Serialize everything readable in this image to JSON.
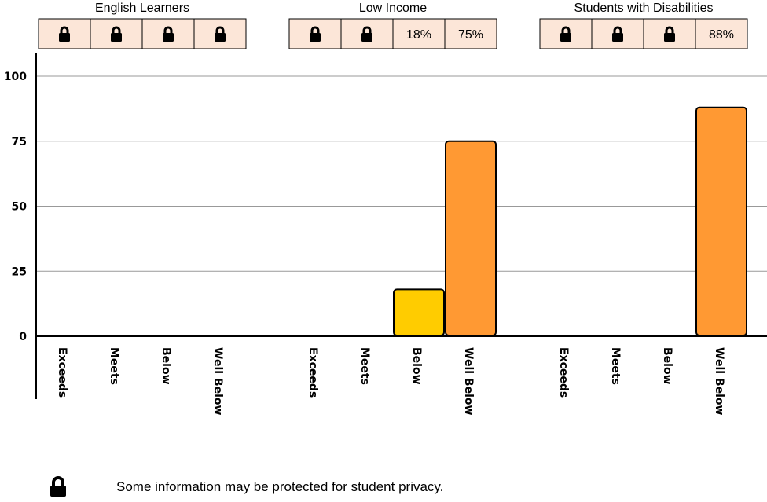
{
  "chart_data": {
    "type": "bar",
    "ylim": [
      0,
      100
    ],
    "yticks": [
      0,
      25,
      50,
      75,
      100
    ],
    "grid": true,
    "colors": {
      "Exceeds": "#4f9bd9",
      "Meets": "#7cc47f",
      "Below": "#ffcc00",
      "Well Below": "#ff9933",
      "cell_bg": "#fce6d8",
      "grid": "#999999"
    },
    "groups": [
      {
        "name": "English Learners",
        "categories": [
          "Exceeds",
          "Meets",
          "Below",
          "Well Below"
        ],
        "cells": [
          "lock",
          "lock",
          "lock",
          "lock"
        ],
        "values": [
          null,
          null,
          null,
          null
        ]
      },
      {
        "name": "Low Income",
        "categories": [
          "Exceeds",
          "Meets",
          "Below",
          "Well Below"
        ],
        "cells": [
          "lock",
          "lock",
          "18%",
          "75%"
        ],
        "values": [
          null,
          null,
          18,
          75
        ]
      },
      {
        "name": "Students with Disabilities",
        "categories": [
          "Exceeds",
          "Meets",
          "Below",
          "Well Below"
        ],
        "cells": [
          "lock",
          "lock",
          "lock",
          "88%"
        ],
        "values": [
          null,
          null,
          null,
          88
        ]
      }
    ]
  },
  "footnote": {
    "icon": "lock-icon",
    "text": "Some information may be protected for student privacy."
  }
}
